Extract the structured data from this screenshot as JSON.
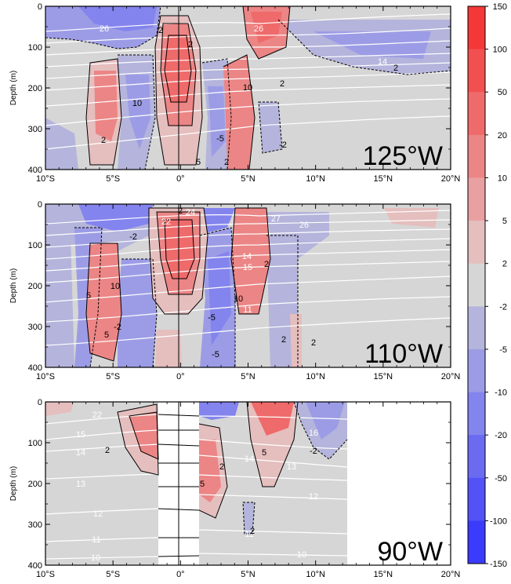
{
  "chart_data": {
    "type": "contour",
    "x_ticks": [
      "10°S",
      "5°S",
      "0°",
      "5°N",
      "10°N",
      "15°N",
      "20°N"
    ],
    "x_tick_values": [
      -10,
      -5,
      0,
      5,
      10,
      15,
      20
    ],
    "xlim": [
      -10,
      20
    ],
    "ylabel": "Depth (m)",
    "y_ticks": [
      "0",
      "100",
      "200",
      "300",
      "400"
    ],
    "y_tick_values": [
      0,
      100,
      200,
      300,
      400
    ],
    "ylim": [
      0,
      400
    ],
    "colorbar": {
      "labels": [
        "150",
        "100",
        "50",
        "20",
        "10",
        "5",
        "2",
        "-2",
        "-5",
        "-10",
        "-20",
        "-50",
        "-100",
        "-150"
      ],
      "colors": [
        "#f43838",
        "#f25050",
        "#ef6a6a",
        "#ec8585",
        "#e9a0a0",
        "#e5bebe",
        "#d6d6d6",
        "#b4b4dc",
        "#9c9ce6",
        "#8484ee",
        "#6b6bf2",
        "#5252f6",
        "#3b3bfb"
      ]
    },
    "panels": [
      {
        "label": "125°W",
        "contour_labels": [
          "2",
          "2",
          "26",
          "26",
          "10",
          "10",
          "14",
          "2",
          "2",
          "2",
          "-5",
          "5",
          "-2",
          "2",
          "2"
        ],
        "isotherm_labels": [
          "26",
          "26",
          "14"
        ],
        "anomaly_labels": [
          "2",
          "2",
          "10",
          "10",
          "2",
          "2",
          "-5",
          "5",
          "-2",
          "2",
          "2"
        ]
      },
      {
        "label": "110°W",
        "isotherm_labels": [
          "22",
          "24",
          "27",
          "26",
          "14",
          "15",
          "11"
        ],
        "anomaly_labels": [
          "-2",
          "2",
          "5",
          "10",
          "-2",
          "10",
          "5",
          "-5",
          "2",
          "2",
          "-5",
          "2"
        ]
      },
      {
        "label": "90°W",
        "isotherm_labels": [
          "22",
          "15",
          "14",
          "13",
          "12",
          "11",
          "10",
          "14",
          "13",
          "12",
          "11",
          "10",
          "16"
        ],
        "anomaly_labels": [
          "2",
          "5",
          "2",
          "5",
          "-2",
          "2"
        ]
      }
    ]
  }
}
